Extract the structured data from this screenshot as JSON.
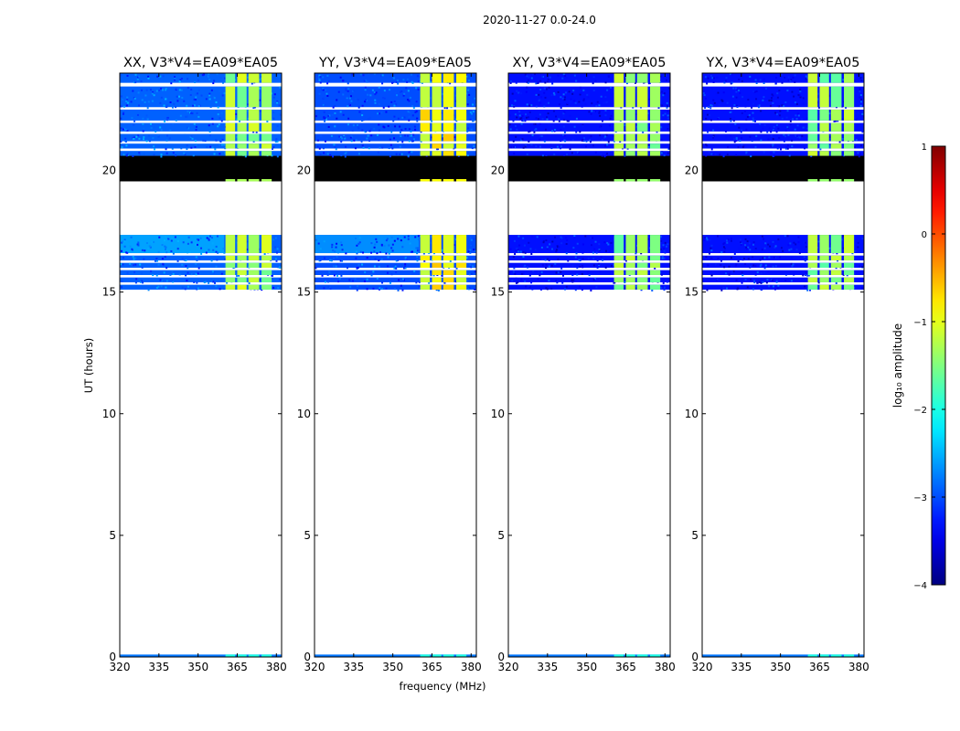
{
  "figure": {
    "suptitle": "2020-11-27 0.0-24.0",
    "xlabel": "frequency (MHz)",
    "ylabel": "UT (hours)"
  },
  "chart_data": {
    "type": "heatmap",
    "x_range": [
      320,
      382
    ],
    "y_range": [
      0,
      24
    ],
    "x_ticks": [
      320,
      335,
      350,
      365,
      380
    ],
    "y_ticks": [
      0,
      5,
      10,
      15,
      20
    ],
    "rfi_channels_mhz": [
      {
        "start": 360.5,
        "end": 364.2
      },
      {
        "start": 365.0,
        "end": 368.6
      },
      {
        "start": 369.3,
        "end": 373.4
      },
      {
        "start": 374.3,
        "end": 378.2
      }
    ],
    "data_rows_ut": [
      {
        "start": 0.0,
        "end": 0.1,
        "kind": "faint"
      },
      {
        "start": 15.1,
        "end": 15.3,
        "kind": "data"
      },
      {
        "start": 15.4,
        "end": 15.6,
        "kind": "data"
      },
      {
        "start": 15.7,
        "end": 15.9,
        "kind": "data"
      },
      {
        "start": 16.0,
        "end": 16.2,
        "kind": "data"
      },
      {
        "start": 16.3,
        "end": 16.5,
        "kind": "data"
      },
      {
        "start": 16.6,
        "end": 17.35,
        "kind": "data"
      },
      {
        "start": 19.55,
        "end": 20.6,
        "kind": "flagged"
      },
      {
        "start": 20.6,
        "end": 20.8,
        "kind": "data"
      },
      {
        "start": 20.9,
        "end": 21.1,
        "kind": "data"
      },
      {
        "start": 21.2,
        "end": 21.5,
        "kind": "data"
      },
      {
        "start": 21.6,
        "end": 21.95,
        "kind": "data"
      },
      {
        "start": 22.05,
        "end": 22.5,
        "kind": "data"
      },
      {
        "start": 22.6,
        "end": 23.45,
        "kind": "data"
      },
      {
        "start": 23.6,
        "end": 24.0,
        "kind": "data"
      }
    ],
    "panels": [
      {
        "title": "XX, V3*V4=EA09*EA05",
        "base_log_amp": -2.9,
        "rfi_log_amp": -1.3,
        "left_brightness": 0.35
      },
      {
        "title": "YY, V3*V4=EA09*EA05",
        "base_log_amp": -3.0,
        "rfi_log_amp": -0.9,
        "left_brightness": 0.3
      },
      {
        "title": "XY, V3*V4=EA09*EA05",
        "base_log_amp": -3.3,
        "rfi_log_amp": -1.4,
        "left_brightness": 0.1
      },
      {
        "title": "YX, V3*V4=EA09*EA05",
        "base_log_amp": -3.3,
        "rfi_log_amp": -1.4,
        "left_brightness": 0.1
      }
    ],
    "colorbar": {
      "label": "log₁₀ amplitude",
      "range": [
        -4,
        1
      ],
      "ticks": [
        -4,
        -3,
        -2,
        -1,
        0,
        1
      ],
      "tick_labels": [
        "−4",
        "−3",
        "−2",
        "−1",
        "0",
        "1"
      ],
      "colormap": "jet"
    }
  }
}
